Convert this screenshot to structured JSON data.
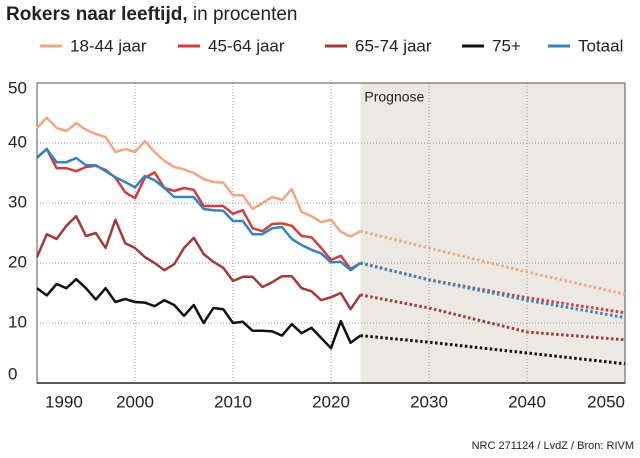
{
  "chart_data": {
    "type": "line",
    "title": "Rokers naar leeftijd,",
    "subtitle": "in procenten",
    "annotation": "Prognose",
    "source": "NRC 271124 / LvdZ / Bron: RIVM",
    "forecast_start": 2023,
    "x": [
      1990,
      1991,
      1992,
      1993,
      1994,
      1995,
      1996,
      1997,
      1998,
      1999,
      2000,
      2001,
      2002,
      2003,
      2004,
      2005,
      2006,
      2007,
      2008,
      2009,
      2010,
      2011,
      2012,
      2013,
      2014,
      2015,
      2016,
      2017,
      2018,
      2019,
      2020,
      2021,
      2022,
      2023,
      2030,
      2040,
      2050
    ],
    "xlim": [
      1990,
      2050
    ],
    "xticks": [
      1990,
      2000,
      2010,
      2020,
      2030,
      2040,
      2050
    ],
    "ylim": [
      0,
      50
    ],
    "yticks": [
      0,
      10,
      20,
      30,
      40,
      50
    ],
    "grid": true,
    "series": [
      {
        "name": "18-44 jaar",
        "color": "#f4a582",
        "values": [
          42.5,
          44.2,
          42.5,
          42,
          43.3,
          42.2,
          41.5,
          41,
          38.5,
          39,
          38.5,
          40.3,
          38.5,
          37,
          36,
          35.6,
          35,
          34,
          33.5,
          33.4,
          31.3,
          31.3,
          29,
          30,
          31,
          30.5,
          32.3,
          28.5,
          27.8,
          26.8,
          27.2,
          25.2,
          24.4,
          25.3,
          22.5,
          18.5,
          14.8
        ]
      },
      {
        "name": "45-64 jaar",
        "color": "#d73b3b",
        "values": [
          37.5,
          39,
          35.8,
          35.8,
          35.3,
          36,
          36.2,
          35.5,
          34.2,
          31.8,
          30.8,
          34.2,
          35.1,
          32.5,
          32,
          32.5,
          32.2,
          29.5,
          29.5,
          29.5,
          28.2,
          28.8,
          25.8,
          25.3,
          26.5,
          26.6,
          26.2,
          24.5,
          24.3,
          22.5,
          20.5,
          21.2,
          19,
          20,
          17.2,
          14.2,
          11.7
        ]
      },
      {
        "name": "65-74 jaar",
        "color": "#a33a3a",
        "values": [
          21,
          24.8,
          24,
          26.2,
          27.8,
          24.5,
          25,
          22.5,
          27.2,
          23.3,
          22.5,
          21,
          20,
          18.8,
          19.8,
          22.5,
          24.2,
          21.5,
          20.2,
          19.2,
          17,
          17.7,
          17.7,
          16,
          16.8,
          17.8,
          17.8,
          15.8,
          15.3,
          13.8,
          14.3,
          15,
          12.3,
          14.7,
          12.5,
          8.5,
          7.2
        ]
      },
      {
        "name": "75+",
        "color": "#111111",
        "values": [
          15.8,
          14.6,
          16.5,
          15.8,
          17.3,
          15.8,
          13.9,
          15.8,
          13.5,
          14,
          13.5,
          13.4,
          12.8,
          13.8,
          13,
          11.2,
          13,
          10,
          12.5,
          12.3,
          10,
          10.2,
          8.7,
          8.7,
          8.6,
          7.9,
          9.8,
          8.3,
          9.2,
          7.5,
          5.8,
          10.3,
          6.7,
          7.9,
          6.8,
          5,
          3.2
        ]
      },
      {
        "name": "Totaal",
        "color": "#2f86c4",
        "values": [
          37.6,
          39,
          36.8,
          36.8,
          37.5,
          36.3,
          36.3,
          35.3,
          34.3,
          33.5,
          32.6,
          34.5,
          33.8,
          32.5,
          31,
          31,
          31,
          29,
          28.8,
          28.7,
          27,
          27,
          24.8,
          24.8,
          25.8,
          26,
          24,
          23,
          22.2,
          21.6,
          20.1,
          20.2,
          18.8,
          20,
          17.2,
          13.8,
          10.9
        ]
      }
    ]
  }
}
